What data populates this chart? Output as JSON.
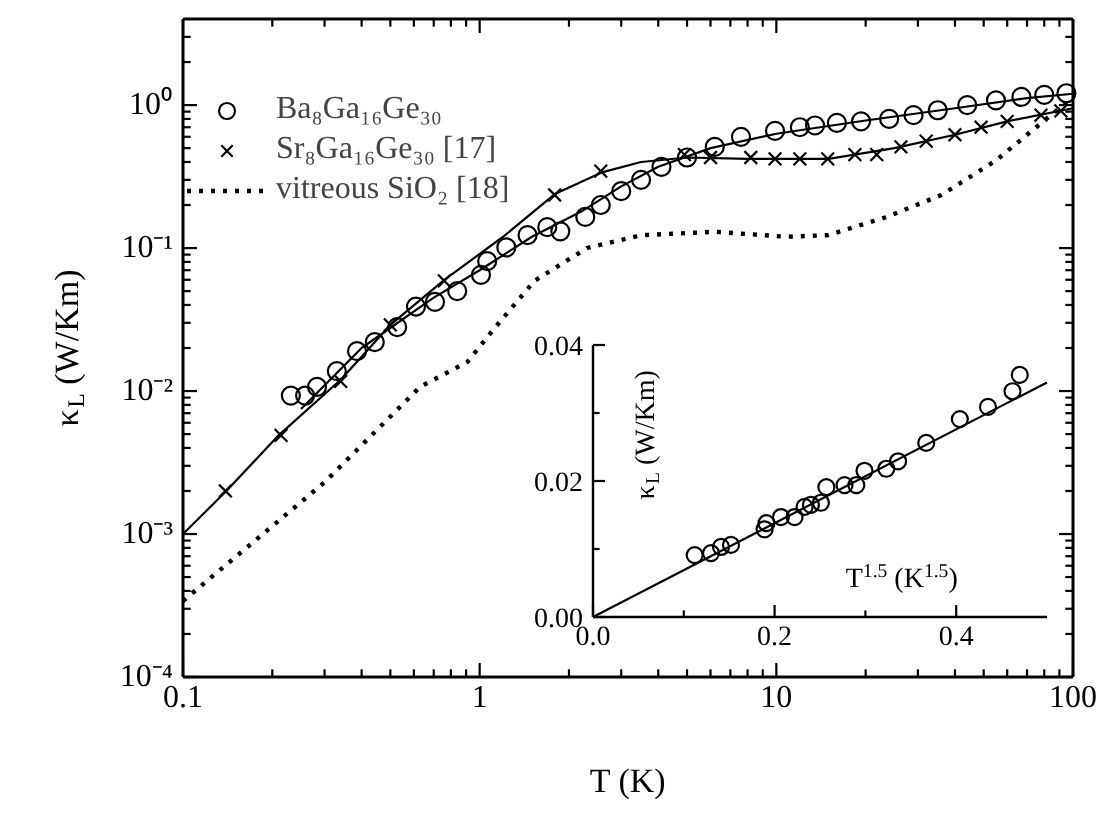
{
  "chart_data": [
    {
      "type": "scatter",
      "xlabel": "T (K)",
      "ylabel": "κ$_{L}$ (W/Km)",
      "log": "xy",
      "legend": "top left",
      "grid": false,
      "xlim": [
        0.1,
        100
      ],
      "ylim": [
        0.0001,
        4
      ],
      "xticks": [
        0.1,
        1,
        10,
        100,
        {
          "value": 0.2,
          "label": null
        },
        {
          "value": 0.3,
          "label": null
        },
        {
          "value": 0.4,
          "label": null
        },
        {
          "value": 0.5,
          "label": null
        },
        {
          "value": 0.6,
          "label": null
        },
        {
          "value": 0.7,
          "label": null
        },
        {
          "value": 0.8,
          "label": null
        },
        {
          "value": 0.9,
          "label": null
        },
        {
          "value": 2,
          "label": null
        },
        {
          "value": 3,
          "label": null
        },
        {
          "value": 4,
          "label": null
        },
        {
          "value": 5,
          "label": null
        },
        {
          "value": 6,
          "label": null
        },
        {
          "value": 7,
          "label": null
        },
        {
          "value": 8,
          "label": null
        },
        {
          "value": 9,
          "label": null
        },
        {
          "value": 20,
          "label": null
        },
        {
          "value": 30,
          "label": null
        },
        {
          "value": 40,
          "label": null
        },
        {
          "value": 50,
          "label": null
        },
        {
          "value": 60,
          "label": null
        },
        {
          "value": 70,
          "label": null
        },
        {
          "value": 80,
          "label": null
        },
        {
          "value": 90,
          "label": null
        }
      ],
      "yticks": [
        {
          "value": 0.0001,
          "label": "10⁻⁴"
        },
        {
          "value": 0.001,
          "label": "10⁻³"
        },
        {
          "value": 0.01,
          "label": "10⁻²"
        },
        {
          "value": 0.1,
          "label": "10⁻¹"
        },
        {
          "value": 1,
          "label": "10⁰"
        },
        {
          "value": 0.0002,
          "label": null
        },
        {
          "value": 0.0003,
          "label": null
        },
        {
          "value": 0.0004,
          "label": null
        },
        {
          "value": 0.0005,
          "label": null
        },
        {
          "value": 0.0006,
          "label": null
        },
        {
          "value": 0.0007,
          "label": null
        },
        {
          "value": 0.0008,
          "label": null
        },
        {
          "value": 0.0009,
          "label": null
        },
        {
          "value": 0.002,
          "label": null
        },
        {
          "value": 0.003,
          "label": null
        },
        {
          "value": 0.004,
          "label": null
        },
        {
          "value": 0.005,
          "label": null
        },
        {
          "value": 0.006,
          "label": null
        },
        {
          "value": 0.007,
          "label": null
        },
        {
          "value": 0.008,
          "label": null
        },
        {
          "value": 0.009,
          "label": null
        },
        {
          "value": 0.02,
          "label": null
        },
        {
          "value": 0.03,
          "label": null
        },
        {
          "value": 0.04,
          "label": null
        },
        {
          "value": 0.05,
          "label": null
        },
        {
          "value": 0.06,
          "label": null
        },
        {
          "value": 0.07,
          "label": null
        },
        {
          "value": 0.08,
          "label": null
        },
        {
          "value": 0.09,
          "label": null
        },
        {
          "value": 0.2,
          "label": null
        },
        {
          "value": 0.3,
          "label": null
        },
        {
          "value": 0.4,
          "label": null
        },
        {
          "value": 0.5,
          "label": null
        },
        {
          "value": 0.6,
          "label": null
        },
        {
          "value": 0.7,
          "label": null
        },
        {
          "value": 0.8,
          "label": null
        },
        {
          "value": 0.9,
          "label": null
        },
        {
          "value": 2,
          "label": null
        },
        {
          "value": 3,
          "label": null
        }
      ],
      "series": [
        {
          "name": "Ba₈Ga₁₆Ge₃₀",
          "type": "scatter",
          "marker": "circle",
          "color": "#000000",
          "x": [
            0.231,
            0.258,
            0.283,
            0.33,
            0.386,
            0.443,
            0.527,
            0.61,
            0.707,
            0.84,
            1.01,
            1.06,
            1.23,
            1.45,
            1.69,
            1.87,
            2.27,
            2.56,
            3.0,
            3.5,
            4.1,
            5.0,
            6.2,
            7.6,
            9.9,
            12,
            13.5,
            16,
            19.3,
            24,
            29,
            35,
            44,
            55,
            67,
            80,
            95
          ],
          "values": [
            0.0093,
            0.0093,
            0.0107,
            0.0138,
            0.019,
            0.022,
            0.028,
            0.039,
            0.042,
            0.05,
            0.065,
            0.081,
            0.101,
            0.123,
            0.14,
            0.131,
            0.165,
            0.2,
            0.25,
            0.3,
            0.37,
            0.43,
            0.51,
            0.6,
            0.66,
            0.7,
            0.72,
            0.75,
            0.77,
            0.8,
            0.85,
            0.92,
            1.0,
            1.08,
            1.14,
            1.18,
            1.21
          ]
        },
        {
          "name": "Sr₈Ga₁₆Ge₃₀ [17]",
          "type": "scatter",
          "marker": "cross",
          "color": "#000000",
          "x": [
            0.139,
            0.214,
            0.34,
            0.5,
            0.76,
            1.79,
            2.56,
            4.9,
            6.0,
            8.2,
            9.9,
            12,
            14.9,
            18.4,
            21.8,
            26.3,
            32,
            40,
            49,
            60,
            78,
            91
          ],
          "values": [
            0.002,
            0.0049,
            0.0117,
            0.029,
            0.059,
            0.235,
            0.345,
            0.45,
            0.43,
            0.43,
            0.42,
            0.42,
            0.42,
            0.45,
            0.45,
            0.51,
            0.56,
            0.62,
            0.7,
            0.77,
            0.85,
            0.91
          ]
        },
        {
          "name": "vitreous SiO₂ [18]",
          "type": "line",
          "line_style": "dotted",
          "color": "#000000",
          "x": [
            0.1,
            0.3,
            0.63,
            0.91,
            1.13,
            1.53,
            2.3,
            3.5,
            6.2,
            10.8,
            14.9,
            23.6,
            36,
            55,
            70,
            91,
            100
          ],
          "values": [
            0.00034,
            0.0023,
            0.0107,
            0.016,
            0.028,
            0.059,
            0.1,
            0.123,
            0.13,
            0.12,
            0.123,
            0.165,
            0.235,
            0.41,
            0.62,
            0.97,
            1.1
          ]
        },
        {
          "type": "line",
          "line_style": "solid",
          "color": "#000000",
          "x": [
            0.1,
            0.14,
            0.21,
            0.34,
            0.5,
            0.76,
            1.2,
            1.8,
            2.6,
            3.5,
            5,
            8,
            15,
            25,
            40,
            60,
            100
          ],
          "values": [
            0.001,
            0.002,
            0.0049,
            0.012,
            0.029,
            0.06,
            0.12,
            0.24,
            0.34,
            0.4,
            0.43,
            0.42,
            0.42,
            0.5,
            0.62,
            0.77,
            0.95
          ]
        },
        {
          "type": "line",
          "line_style": "solid",
          "color": "#000000",
          "x": [
            0.25,
            0.4,
            0.7,
            1,
            1.5,
            2.2,
            3,
            4,
            6,
            10,
            20,
            40,
            70,
            100
          ],
          "values": [
            0.0075,
            0.02,
            0.045,
            0.07,
            0.12,
            0.18,
            0.27,
            0.37,
            0.5,
            0.63,
            0.78,
            0.95,
            1.12,
            1.2
          ]
        }
      ]
    },
    {
      "type": "scatter",
      "xlabel": "T$^{1.5}$ (K$^{1.5}$)",
      "ylabel": "κ$_{L}$ (W/Km)",
      "xlim": [
        0,
        0.5
      ],
      "ylim": [
        0,
        0.04
      ],
      "xticks": [
        {
          "value": 0,
          "label": "0.0"
        },
        {
          "value": 0.2,
          "label": "0.2"
        },
        {
          "value": 0.4,
          "label": "0.4"
        },
        {
          "value": 0.1,
          "label": null
        },
        {
          "value": 0.3,
          "label": null
        }
      ],
      "yticks": [
        {
          "value": 0,
          "label": "0.00"
        },
        {
          "value": 0.02,
          "label": "0.02"
        },
        {
          "value": 0.04,
          "label": "0.04"
        },
        {
          "value": 0.01,
          "label": null
        },
        {
          "value": 0.03,
          "label": null
        }
      ],
      "series": [
        {
          "type": "scatter",
          "marker": "circle",
          "color": "#000000",
          "x": [
            0.112,
            0.13,
            0.141,
            0.152,
            0.189,
            0.191,
            0.207,
            0.222,
            0.233,
            0.24,
            0.251,
            0.257,
            0.277,
            0.29,
            0.299,
            0.323,
            0.336,
            0.367,
            0.404,
            0.435,
            0.462,
            0.47
          ],
          "values": [
            0.0091,
            0.0094,
            0.0103,
            0.0106,
            0.0129,
            0.0138,
            0.0147,
            0.0147,
            0.0162,
            0.0165,
            0.0168,
            0.0191,
            0.0194,
            0.0194,
            0.0215,
            0.0218,
            0.0229,
            0.0256,
            0.0291,
            0.0309,
            0.0332,
            0.0356
          ]
        },
        {
          "type": "line",
          "line_style": "solid",
          "color": "#000000",
          "x": [
            0,
            0.5
          ],
          "values": [
            0,
            0.0345
          ]
        }
      ]
    }
  ]
}
